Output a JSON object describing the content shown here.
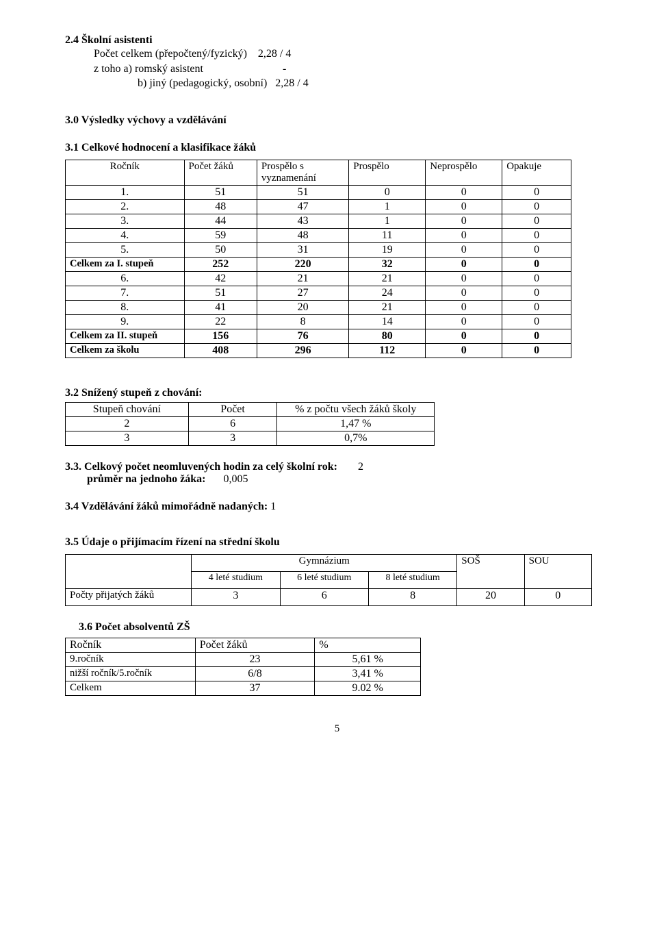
{
  "s24": {
    "title": "2.4  Školní asistenti",
    "l1_label": "Počet celkem  (přepočtený/fyzický)",
    "l1_val": "2,28 / 4",
    "l2_label": "z toho a) romský asistent",
    "l2_val": "-",
    "l3_label": "b) jiný (pedagogický, osobní)",
    "l3_val": "2,28 / 4"
  },
  "s30": {
    "title": "3.0 Výsledky výchovy a vzdělávání"
  },
  "s31": {
    "title": "3.1 Celkové hodnocení a klasifikace žáků",
    "headers": [
      "Ročník",
      "Počet žáků",
      "Prospělo s vyznamenání",
      "Prospělo",
      "Neprospělo",
      "Opakuje"
    ],
    "rows": [
      {
        "label": "1.",
        "v": [
          51,
          51,
          0,
          0,
          0
        ],
        "bold": false
      },
      {
        "label": "2.",
        "v": [
          48,
          47,
          1,
          0,
          0
        ],
        "bold": false
      },
      {
        "label": "3.",
        "v": [
          44,
          43,
          1,
          0,
          0
        ],
        "bold": false
      },
      {
        "label": "4.",
        "v": [
          59,
          48,
          11,
          0,
          0
        ],
        "bold": false
      },
      {
        "label": "5.",
        "v": [
          50,
          31,
          19,
          0,
          0
        ],
        "bold": false
      },
      {
        "label": "Celkem za I. stupeň",
        "v": [
          252,
          220,
          32,
          0,
          0
        ],
        "bold": true
      },
      {
        "label": "6.",
        "v": [
          42,
          21,
          21,
          0,
          0
        ],
        "bold": false
      },
      {
        "label": "7.",
        "v": [
          51,
          27,
          24,
          0,
          0
        ],
        "bold": false
      },
      {
        "label": "8.",
        "v": [
          41,
          20,
          21,
          0,
          0
        ],
        "bold": false
      },
      {
        "label": "9.",
        "v": [
          22,
          8,
          14,
          0,
          0
        ],
        "bold": false
      },
      {
        "label": "Celkem za II. stupeň",
        "v": [
          156,
          76,
          80,
          0,
          0
        ],
        "bold": true
      },
      {
        "label": "Celkem za školu",
        "v": [
          408,
          296,
          112,
          0,
          0
        ],
        "bold": true
      }
    ]
  },
  "s32": {
    "title": "3.2 Snížený stupeň z chování:",
    "headers": [
      "Stupeň chování",
      "Počet",
      "% z počtu všech žáků školy"
    ],
    "rows": [
      [
        "2",
        "6",
        "1,47 %"
      ],
      [
        "3",
        "3",
        "0,7%"
      ]
    ]
  },
  "s33": {
    "title_a": "3.3.  Celkový počet neomluvených hodin za celý školní rok:",
    "val_a": "2",
    "title_b": "průměr na jednoho žáka:",
    "val_b": "0,005"
  },
  "s34": {
    "title": "3.4 Vzdělávání žáků mimořádně nadaných:",
    "val": "1"
  },
  "s35": {
    "title": "3.5 Údaje o přijímacím řízení na střední školu",
    "head_gym": "Gymnázium",
    "head_sos": "SOŠ",
    "head_sou": "SOU",
    "sub": [
      "4 leté studium",
      "6 leté studium",
      "8 leté studium"
    ],
    "row_label": "Počty přijatých žáků",
    "row_vals": [
      "3",
      "6",
      "8",
      "20",
      "0"
    ]
  },
  "s36": {
    "title": "3.6 Počet absolventů ZŠ",
    "headers": [
      "Ročník",
      "Počet žáků",
      "%"
    ],
    "rows": [
      [
        "9.ročník",
        "23",
        "5,61 %"
      ],
      [
        "nižší ročník/5.ročník",
        "6/8",
        "3,41 %"
      ],
      [
        "Celkem",
        "37",
        "9.02 %"
      ]
    ]
  },
  "page_number": "5"
}
